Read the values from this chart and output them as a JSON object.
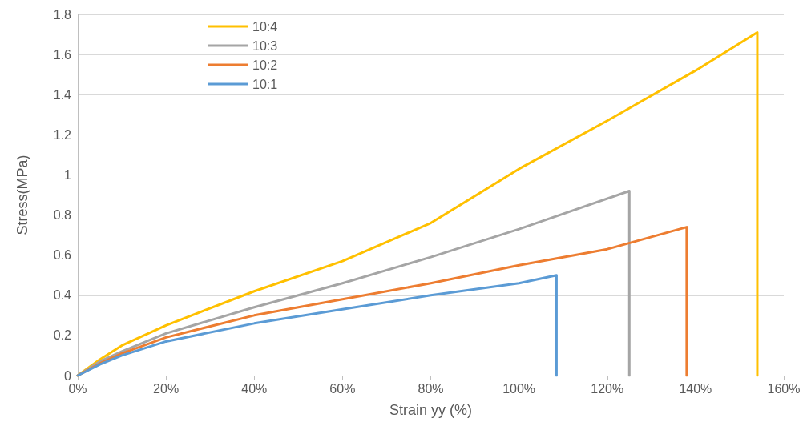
{
  "chart_data": {
    "type": "line",
    "xlabel": "Strain yy (%)",
    "ylabel": "Stress(MPa)",
    "xlim": [
      0,
      160
    ],
    "xticks": [
      {
        "value": 0,
        "label": "0%"
      },
      {
        "value": 20,
        "label": "20%"
      },
      {
        "value": 40,
        "label": "40%"
      },
      {
        "value": 60,
        "label": "60%"
      },
      {
        "value": 80,
        "label": "80%"
      },
      {
        "value": 100,
        "label": "100%"
      },
      {
        "value": 120,
        "label": "120%"
      },
      {
        "value": 140,
        "label": "140%"
      },
      {
        "value": 160,
        "label": "160%"
      }
    ],
    "ylim": [
      0,
      1.8
    ],
    "yticks": [
      0,
      0.2,
      0.4,
      0.6,
      0.8,
      1,
      1.2,
      1.4,
      1.6,
      1.8
    ],
    "grid": "y",
    "legend": "top left",
    "marker": "none",
    "line_style": "solid",
    "series": [
      {
        "name": "10:4",
        "color": "#ffc000",
        "x": [
          0,
          5,
          10,
          20,
          40,
          60,
          80,
          100,
          120,
          140,
          154,
          154
        ],
        "values": [
          0,
          0.08,
          0.15,
          0.25,
          0.42,
          0.57,
          0.76,
          1.03,
          1.27,
          1.52,
          1.71,
          0
        ]
      },
      {
        "name": "10:3",
        "color": "#a5a5a5",
        "x": [
          0,
          5,
          10,
          20,
          40,
          60,
          80,
          100,
          125,
          125
        ],
        "values": [
          0,
          0.07,
          0.12,
          0.21,
          0.34,
          0.46,
          0.59,
          0.73,
          0.92,
          0
        ]
      },
      {
        "name": "10:2",
        "color": "#ed7d31",
        "x": [
          0,
          5,
          10,
          20,
          40,
          60,
          80,
          100,
          120,
          138,
          138
        ],
        "values": [
          0,
          0.06,
          0.11,
          0.19,
          0.3,
          0.38,
          0.46,
          0.55,
          0.63,
          0.74,
          0
        ]
      },
      {
        "name": "10:1",
        "color": "#5b9bd5",
        "x": [
          0,
          5,
          10,
          20,
          40,
          60,
          80,
          100,
          108.5,
          108.5
        ],
        "values": [
          0,
          0.055,
          0.1,
          0.17,
          0.26,
          0.33,
          0.4,
          0.46,
          0.5,
          0
        ]
      }
    ]
  }
}
